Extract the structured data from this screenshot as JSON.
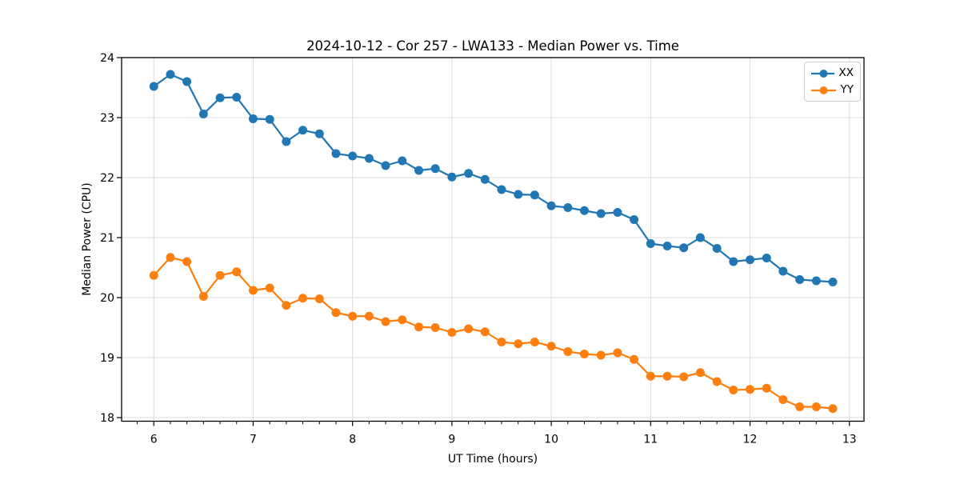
{
  "chart_data": {
    "type": "line",
    "title": "2024-10-12 - Cor 257 - LWA133 - Median Power vs. Time",
    "xlabel": "UT Time (hours)",
    "ylabel": "Median Power (CPU)",
    "xlim": [
      5.676,
      13.147
    ],
    "ylim": [
      17.94,
      24.0
    ],
    "x_ticks": [
      6,
      7,
      8,
      9,
      10,
      11,
      12,
      13
    ],
    "y_ticks": [
      18,
      19,
      20,
      21,
      22,
      23,
      24
    ],
    "x_minor_ticks_per_major": 6,
    "grid": true,
    "grid_color": "#dcdcdc",
    "legend_position": "upper right",
    "marker": "circle",
    "x": [
      6.0,
      6.167,
      6.333,
      6.5,
      6.667,
      6.833,
      7.0,
      7.167,
      7.333,
      7.5,
      7.667,
      7.833,
      8.0,
      8.167,
      8.333,
      8.5,
      8.667,
      8.833,
      9.0,
      9.167,
      9.333,
      9.5,
      9.667,
      9.833,
      10.0,
      10.167,
      10.333,
      10.5,
      10.667,
      10.833,
      11.0,
      11.167,
      11.333,
      11.5,
      11.667,
      11.833,
      12.0,
      12.167,
      12.333,
      12.5,
      12.667,
      12.833
    ],
    "series": [
      {
        "name": "XX",
        "color": "#1f77b4",
        "values": [
          23.52,
          23.72,
          23.6,
          23.06,
          23.33,
          23.34,
          22.98,
          22.97,
          22.6,
          22.79,
          22.73,
          22.4,
          22.36,
          22.32,
          22.2,
          22.28,
          22.12,
          22.15,
          22.01,
          22.07,
          21.97,
          21.8,
          21.72,
          21.71,
          21.53,
          21.5,
          21.45,
          21.4,
          21.42,
          21.3,
          20.9,
          20.86,
          20.83,
          21.0,
          20.82,
          20.6,
          20.63,
          20.66,
          20.44,
          20.3,
          20.28,
          20.26
        ]
      },
      {
        "name": "YY",
        "color": "#ff7f0e",
        "values": [
          20.37,
          20.67,
          20.6,
          20.02,
          20.37,
          20.43,
          20.12,
          20.16,
          19.87,
          19.99,
          19.98,
          19.75,
          19.69,
          19.69,
          19.6,
          19.63,
          19.51,
          19.5,
          19.42,
          19.48,
          19.43,
          19.26,
          19.23,
          19.26,
          19.19,
          19.1,
          19.06,
          19.04,
          19.08,
          18.97,
          18.69,
          18.69,
          18.68,
          18.75,
          18.6,
          18.46,
          18.47,
          18.49,
          18.3,
          18.18,
          18.18,
          18.15
        ]
      }
    ]
  },
  "legend": {
    "entries": [
      "XX",
      "YY"
    ]
  }
}
